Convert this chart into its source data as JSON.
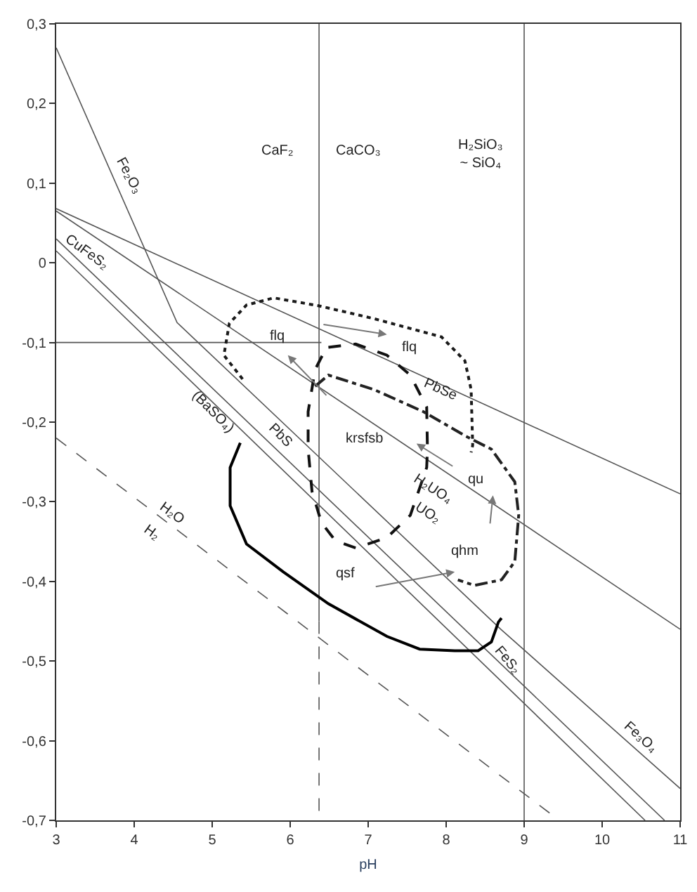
{
  "chart_data": {
    "type": "line",
    "xlabel": "pH",
    "xlim": [
      3,
      11
    ],
    "xticks": [
      3,
      4,
      5,
      6,
      7,
      8,
      9,
      10,
      11
    ],
    "ylim": [
      -0.7,
      0.3
    ],
    "yticks": [
      {
        "value": 0.3,
        "label": "0,3"
      },
      {
        "value": 0.2,
        "label": "0,2"
      },
      {
        "value": 0.1,
        "label": "0,1"
      },
      {
        "value": 0,
        "label": "0"
      },
      {
        "value": -0.1,
        "label": "-0,1"
      },
      {
        "value": -0.2,
        "label": "-0,2"
      },
      {
        "value": -0.3,
        "label": "-0,3"
      },
      {
        "value": -0.4,
        "label": "-0,4"
      },
      {
        "value": -0.5,
        "label": "-0,5"
      },
      {
        "value": -0.6,
        "label": "-0,6"
      },
      {
        "value": -0.7,
        "label": "-0,7"
      }
    ],
    "legend": false,
    "marker": "none",
    "series": [
      {
        "x": [
          3,
          11
        ],
        "values": [
          0.068,
          -0.29
        ],
        "color": "#555555",
        "line_style": "solid"
      },
      {
        "x": [
          3,
          11
        ],
        "values": [
          0.065,
          -0.46
        ],
        "color": "#555555",
        "line_style": "solid"
      },
      {
        "x": [
          3,
          4.55,
          8.7,
          11
        ],
        "values": [
          0.27,
          -0.075,
          -0.46,
          -0.66
        ],
        "color": "#555555",
        "line_style": "solid"
      },
      {
        "x": [
          3,
          10.8
        ],
        "values": [
          0.03,
          -0.7
        ],
        "color": "#555555",
        "line_style": "solid"
      },
      {
        "x": [
          3,
          10.55
        ],
        "values": [
          0.015,
          -0.7
        ],
        "color": "#555555",
        "line_style": "solid"
      },
      {
        "x": [
          3,
          6.4
        ],
        "values": [
          -0.1,
          -0.1
        ],
        "color": "#555555",
        "line_style": "solid"
      },
      {
        "x": [
          6.37,
          6.37
        ],
        "values": [
          0.3,
          -0.45
        ],
        "color": "#555555",
        "line_style": "solid"
      },
      {
        "x": [
          6.37,
          6.37
        ],
        "values": [
          -0.45,
          -0.7
        ],
        "color": "#555555",
        "line_style": "dashed"
      },
      {
        "x": [
          9,
          9
        ],
        "values": [
          0.3,
          -0.7
        ],
        "color": "#555555",
        "line_style": "solid"
      },
      {
        "x": [
          3,
          9.45
        ],
        "values": [
          -0.22,
          -0.7
        ],
        "color": "#555555",
        "line_style": "dashed"
      },
      {
        "x": [
          5.39,
          5.15,
          5.22,
          5.44,
          5.79,
          6.37,
          7.07,
          7.94,
          8.24,
          8.32,
          8.34,
          8.32
        ],
        "values": [
          -0.146,
          -0.116,
          -0.076,
          -0.053,
          -0.044,
          -0.054,
          -0.07,
          -0.093,
          -0.123,
          -0.159,
          -0.229,
          -0.238
        ],
        "color": "#1a1a1a",
        "line_style": "dotted"
      },
      {
        "x": [
          6.49,
          6.84,
          7.24,
          7.54,
          7.75,
          7.76,
          7.75,
          7.54,
          7.24,
          6.84,
          6.58,
          6.4,
          6.28,
          6.23,
          6.23,
          6.32,
          6.44
        ],
        "values": [
          -0.106,
          -0.102,
          -0.116,
          -0.141,
          -0.181,
          -0.234,
          -0.257,
          -0.317,
          -0.345,
          -0.358,
          -0.349,
          -0.326,
          -0.287,
          -0.234,
          -0.187,
          -0.134,
          -0.111
        ],
        "color": "#111111",
        "line_style": "dashed"
      },
      {
        "x": [
          6.32,
          6.49,
          7.07,
          7.71,
          8.24,
          8.58,
          8.88,
          8.93,
          8.88,
          8.71,
          8.36,
          8.15
        ],
        "values": [
          -0.155,
          -0.141,
          -0.159,
          -0.187,
          -0.217,
          -0.234,
          -0.275,
          -0.317,
          -0.375,
          -0.398,
          -0.405,
          -0.398
        ],
        "color": "#222222",
        "line_style": "dashdot"
      },
      {
        "x": [
          5.36,
          5.23,
          5.23,
          5.44,
          5.91,
          6.49,
          7.24,
          7.66,
          8.11,
          8.41,
          8.58,
          8.67,
          8.71
        ],
        "values": [
          -0.226,
          -0.257,
          -0.305,
          -0.353,
          -0.388,
          -0.428,
          -0.469,
          -0.485,
          -0.487,
          -0.487,
          -0.476,
          -0.451,
          -0.446
        ],
        "color": "#000000",
        "line_style": "solid"
      }
    ],
    "annotations": [
      "CaF₂",
      "CaCO₃",
      "H₂SiO₃\n~ SiO₄",
      "Fe₂O₃",
      "CuFeS₂",
      "(BaSO₄)",
      "PbS",
      "flq",
      "flq",
      "PbSe",
      "krsfsb",
      "qu",
      "H₂UO₄",
      "UO₂",
      "qhm",
      "qsf",
      "FeS₂",
      "Fe₃O₄",
      "H₂O",
      "H₂"
    ]
  }
}
